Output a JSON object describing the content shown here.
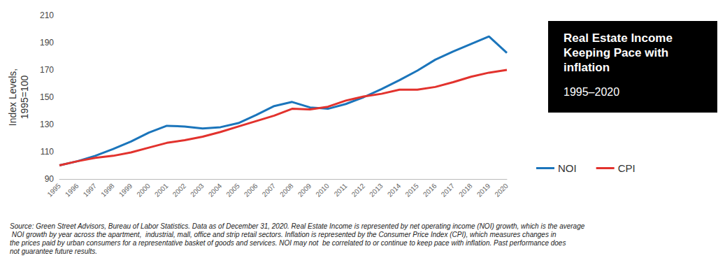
{
  "chart_data": {
    "type": "line",
    "title": "Real Estate Income Keeping Pace with inflation",
    "subtitle": "1995–2020",
    "ylabel": "Index Levels,\n1995=100",
    "categories": [
      "1995",
      "1996",
      "1997",
      "1998",
      "1999",
      "2000",
      "2001",
      "2002",
      "2003",
      "2004",
      "2005",
      "2006",
      "2007",
      "2008",
      "2009",
      "2010",
      "2011",
      "2012",
      "2013",
      "2014",
      "2015",
      "2016",
      "2017",
      "2018",
      "2019",
      "2020"
    ],
    "series": [
      {
        "name": "NOI",
        "color": "#1b75bb",
        "values": [
          100,
          103,
          107,
          112,
          117.5,
          124,
          129,
          128.5,
          127,
          128,
          131,
          137,
          143.5,
          146.5,
          142.5,
          141.5,
          145,
          150,
          156,
          162.5,
          169.5,
          177.5,
          183.5,
          189,
          194.5,
          182.5
        ]
      },
      {
        "name": "CPI",
        "color": "#e2322d",
        "values": [
          100,
          103,
          105.5,
          107,
          109.5,
          113,
          116.5,
          118.5,
          121,
          124.5,
          128.5,
          132.5,
          136.5,
          141.5,
          141,
          143,
          147.5,
          150.5,
          152.5,
          155.5,
          155.5,
          157.5,
          161,
          165,
          168,
          170
        ]
      }
    ],
    "ylim": [
      90,
      210
    ],
    "yticks": [
      90,
      110,
      130,
      150,
      170,
      190,
      210
    ],
    "grid": false,
    "legend": "right",
    "note": "Source: Green Street Advisors, Bureau of Labor Statistics. Data as of December 31, 2020. Real Estate Income is represented by net operating income (NOI) growth, which is the average NOI growth by year across the apartment,  industrial, mall, office and strip retail sectors. Inflation is represented by the Consumer Price Index (CPI), which measures changes in the prices paid by urban consumers for a representative basket of goods and services. NOI may not  be correlated to or continue to keep pace with inflation. Past performance does not guarantee future results."
  }
}
